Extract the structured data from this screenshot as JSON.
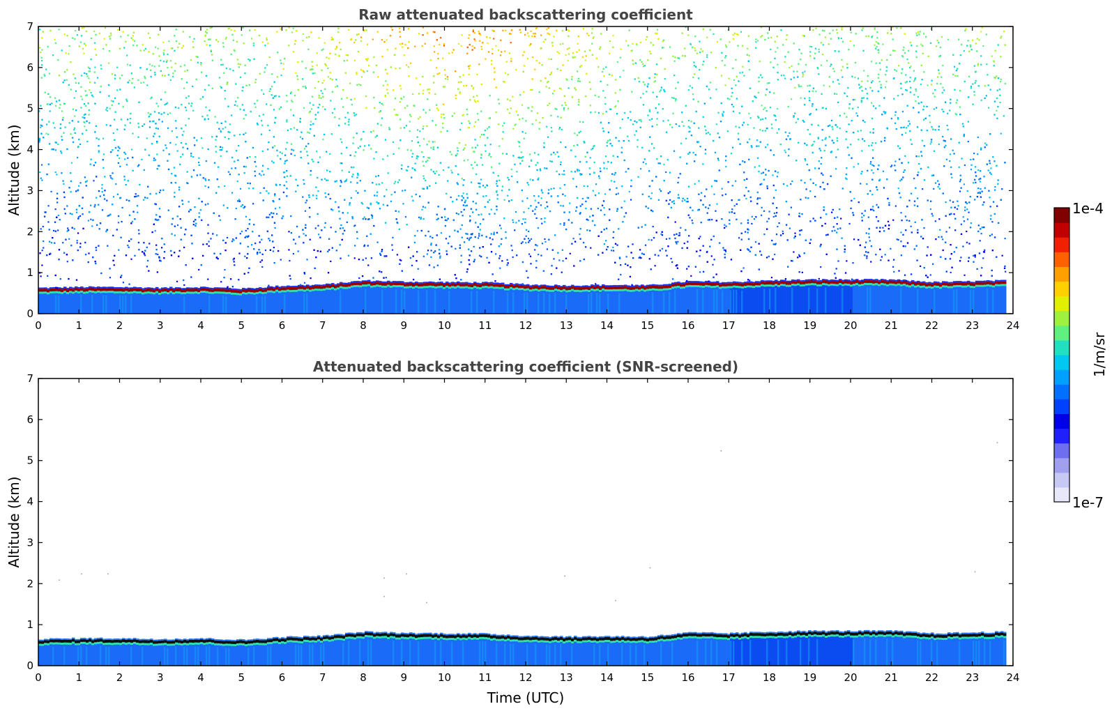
{
  "chart_data": [
    {
      "type": "heatmap",
      "title": "Raw attenuated backscattering coefficient",
      "xlabel": "",
      "ylabel": "Altitude (km)",
      "xlim": [
        0,
        24
      ],
      "ylim": [
        0,
        7
      ],
      "xticks": [
        "0",
        "1",
        "2",
        "3",
        "4",
        "5",
        "6",
        "7",
        "8",
        "9",
        "10",
        "11",
        "12",
        "13",
        "14",
        "15",
        "16",
        "17",
        "18",
        "19",
        "20",
        "21",
        "22",
        "23",
        "24"
      ],
      "yticks": [
        "0",
        "1",
        "2",
        "3",
        "4",
        "5",
        "6",
        "7"
      ],
      "data_end_time": 23.8,
      "grid": false,
      "layer_top_km": [
        [
          0,
          0.58
        ],
        [
          1,
          0.6
        ],
        [
          2,
          0.6
        ],
        [
          3,
          0.58
        ],
        [
          4,
          0.6
        ],
        [
          5,
          0.56
        ],
        [
          6,
          0.63
        ],
        [
          7,
          0.66
        ],
        [
          8,
          0.76
        ],
        [
          9,
          0.73
        ],
        [
          10,
          0.72
        ],
        [
          11,
          0.71
        ],
        [
          12,
          0.66
        ],
        [
          13,
          0.64
        ],
        [
          14,
          0.65
        ],
        [
          15,
          0.64
        ],
        [
          16,
          0.74
        ],
        [
          17,
          0.72
        ],
        [
          18,
          0.76
        ],
        [
          19,
          0.78
        ],
        [
          20,
          0.78
        ],
        [
          21,
          0.78
        ],
        [
          22,
          0.72
        ],
        [
          23,
          0.74
        ],
        [
          23.8,
          0.76
        ]
      ]
    },
    {
      "type": "heatmap",
      "title": "Attenuated backscattering coefficient (SNR-screened)",
      "xlabel": "Time (UTC)",
      "ylabel": "Altitude (km)",
      "xlim": [
        0,
        24
      ],
      "ylim": [
        0,
        7
      ],
      "xticks": [
        "0",
        "1",
        "2",
        "3",
        "4",
        "5",
        "6",
        "7",
        "8",
        "9",
        "10",
        "11",
        "12",
        "13",
        "14",
        "15",
        "16",
        "17",
        "18",
        "19",
        "20",
        "21",
        "22",
        "23",
        "24"
      ],
      "yticks": [
        "0",
        "1",
        "2",
        "3",
        "4",
        "5",
        "6",
        "7"
      ],
      "data_end_time": 23.8,
      "grid": false,
      "layer_top_km": [
        [
          0,
          0.6
        ],
        [
          1,
          0.62
        ],
        [
          2,
          0.62
        ],
        [
          3,
          0.6
        ],
        [
          4,
          0.62
        ],
        [
          5,
          0.58
        ],
        [
          6,
          0.65
        ],
        [
          7,
          0.68
        ],
        [
          8,
          0.78
        ],
        [
          9,
          0.75
        ],
        [
          10,
          0.74
        ],
        [
          11,
          0.73
        ],
        [
          12,
          0.68
        ],
        [
          13,
          0.66
        ],
        [
          14,
          0.67
        ],
        [
          15,
          0.66
        ],
        [
          16,
          0.76
        ],
        [
          17,
          0.74
        ],
        [
          18,
          0.78
        ],
        [
          19,
          0.8
        ],
        [
          20,
          0.8
        ],
        [
          21,
          0.8
        ],
        [
          22,
          0.74
        ],
        [
          23,
          0.76
        ],
        [
          23.8,
          0.78
        ]
      ]
    }
  ],
  "colorbar": {
    "max_label": "1e-4",
    "min_label": "1e-7",
    "unit_label": "1/m/sr",
    "scale": "log",
    "colors": [
      "#e8e8fa",
      "#c8c8f4",
      "#a0a0ee",
      "#6e6ef0",
      "#2020ff",
      "#0000e8",
      "#0040ff",
      "#0070ff",
      "#00a0ff",
      "#00c8f0",
      "#20e0c0",
      "#60f080",
      "#a0f040",
      "#e0f000",
      "#ffd000",
      "#ffa000",
      "#ff6000",
      "#f02000",
      "#c00000",
      "#800000"
    ]
  }
}
